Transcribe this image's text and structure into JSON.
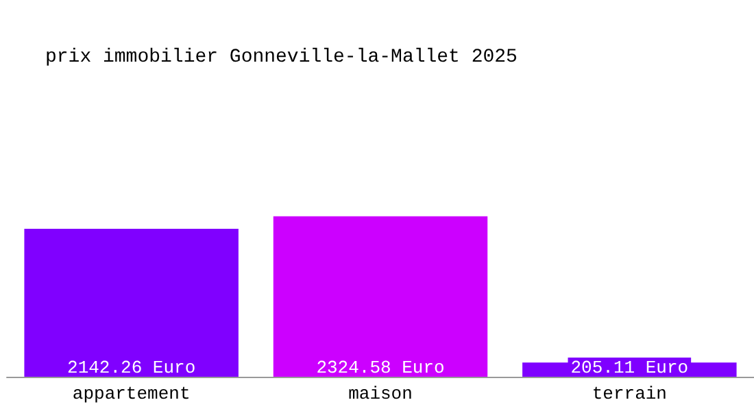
{
  "chart_data": {
    "type": "bar",
    "title": "prix immobilier Gonneville-la-Mallet 2025",
    "categories": [
      "appartement",
      "maison",
      "terrain"
    ],
    "values": [
      2142.26,
      2324.58,
      205.11
    ],
    "colors": [
      "#8000ff",
      "#cc00ff",
      "#7f00ff"
    ],
    "value_labels": [
      "2142.26 Euro",
      "2324.58 Euro",
      "205.11 Euro"
    ]
  }
}
